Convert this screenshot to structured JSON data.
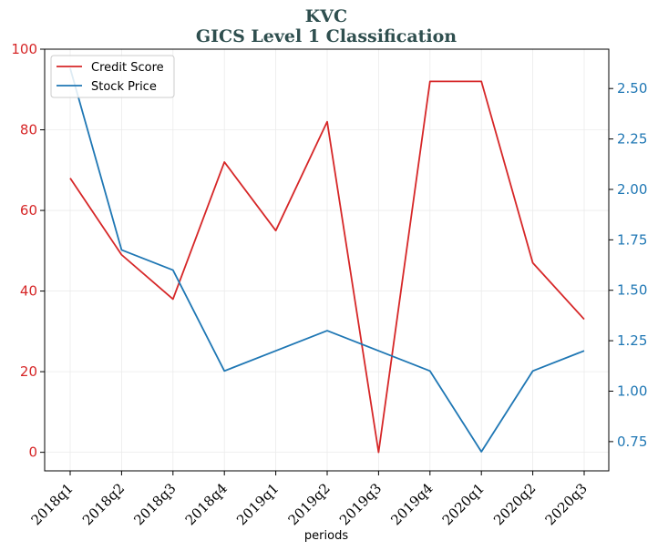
{
  "title_line1": "KVC",
  "title_line2": "GICS Level 1 Classification",
  "chart_data": {
    "type": "line",
    "xlabel": "periods",
    "categories": [
      "2018q1",
      "2018q2",
      "2018q3",
      "2018q4",
      "2019q1",
      "2019q2",
      "2019q3",
      "2019q4",
      "2020q1",
      "2020q2",
      "2020q3"
    ],
    "series": [
      {
        "name": "Credit Score",
        "axis": "left",
        "color": "#d62728",
        "values": [
          68,
          49,
          38,
          72,
          55,
          82,
          0,
          92,
          92,
          47,
          33
        ]
      },
      {
        "name": "Stock Price",
        "axis": "right",
        "color": "#1f77b4",
        "values": [
          2.6,
          1.7,
          1.6,
          1.1,
          1.2,
          1.3,
          1.2,
          1.1,
          0.7,
          1.1,
          1.2
        ]
      }
    ],
    "y_left": {
      "ylim": [
        -4.6,
        100
      ],
      "ticks": [
        0,
        20,
        40,
        60,
        80,
        100
      ],
      "tick_labels": [
        "0",
        "20",
        "40",
        "60",
        "80",
        "100"
      ],
      "color": "#d62728"
    },
    "y_right": {
      "ylim": [
        0.605,
        2.695
      ],
      "ticks": [
        0.75,
        1.0,
        1.25,
        1.5,
        1.75,
        2.0,
        2.25,
        2.5
      ],
      "tick_labels": [
        "0.75",
        "1.00",
        "1.25",
        "1.50",
        "1.75",
        "2.00",
        "2.25",
        "2.50"
      ],
      "color": "#1f77b4"
    },
    "grid": true,
    "legend_position": "upper-left"
  }
}
